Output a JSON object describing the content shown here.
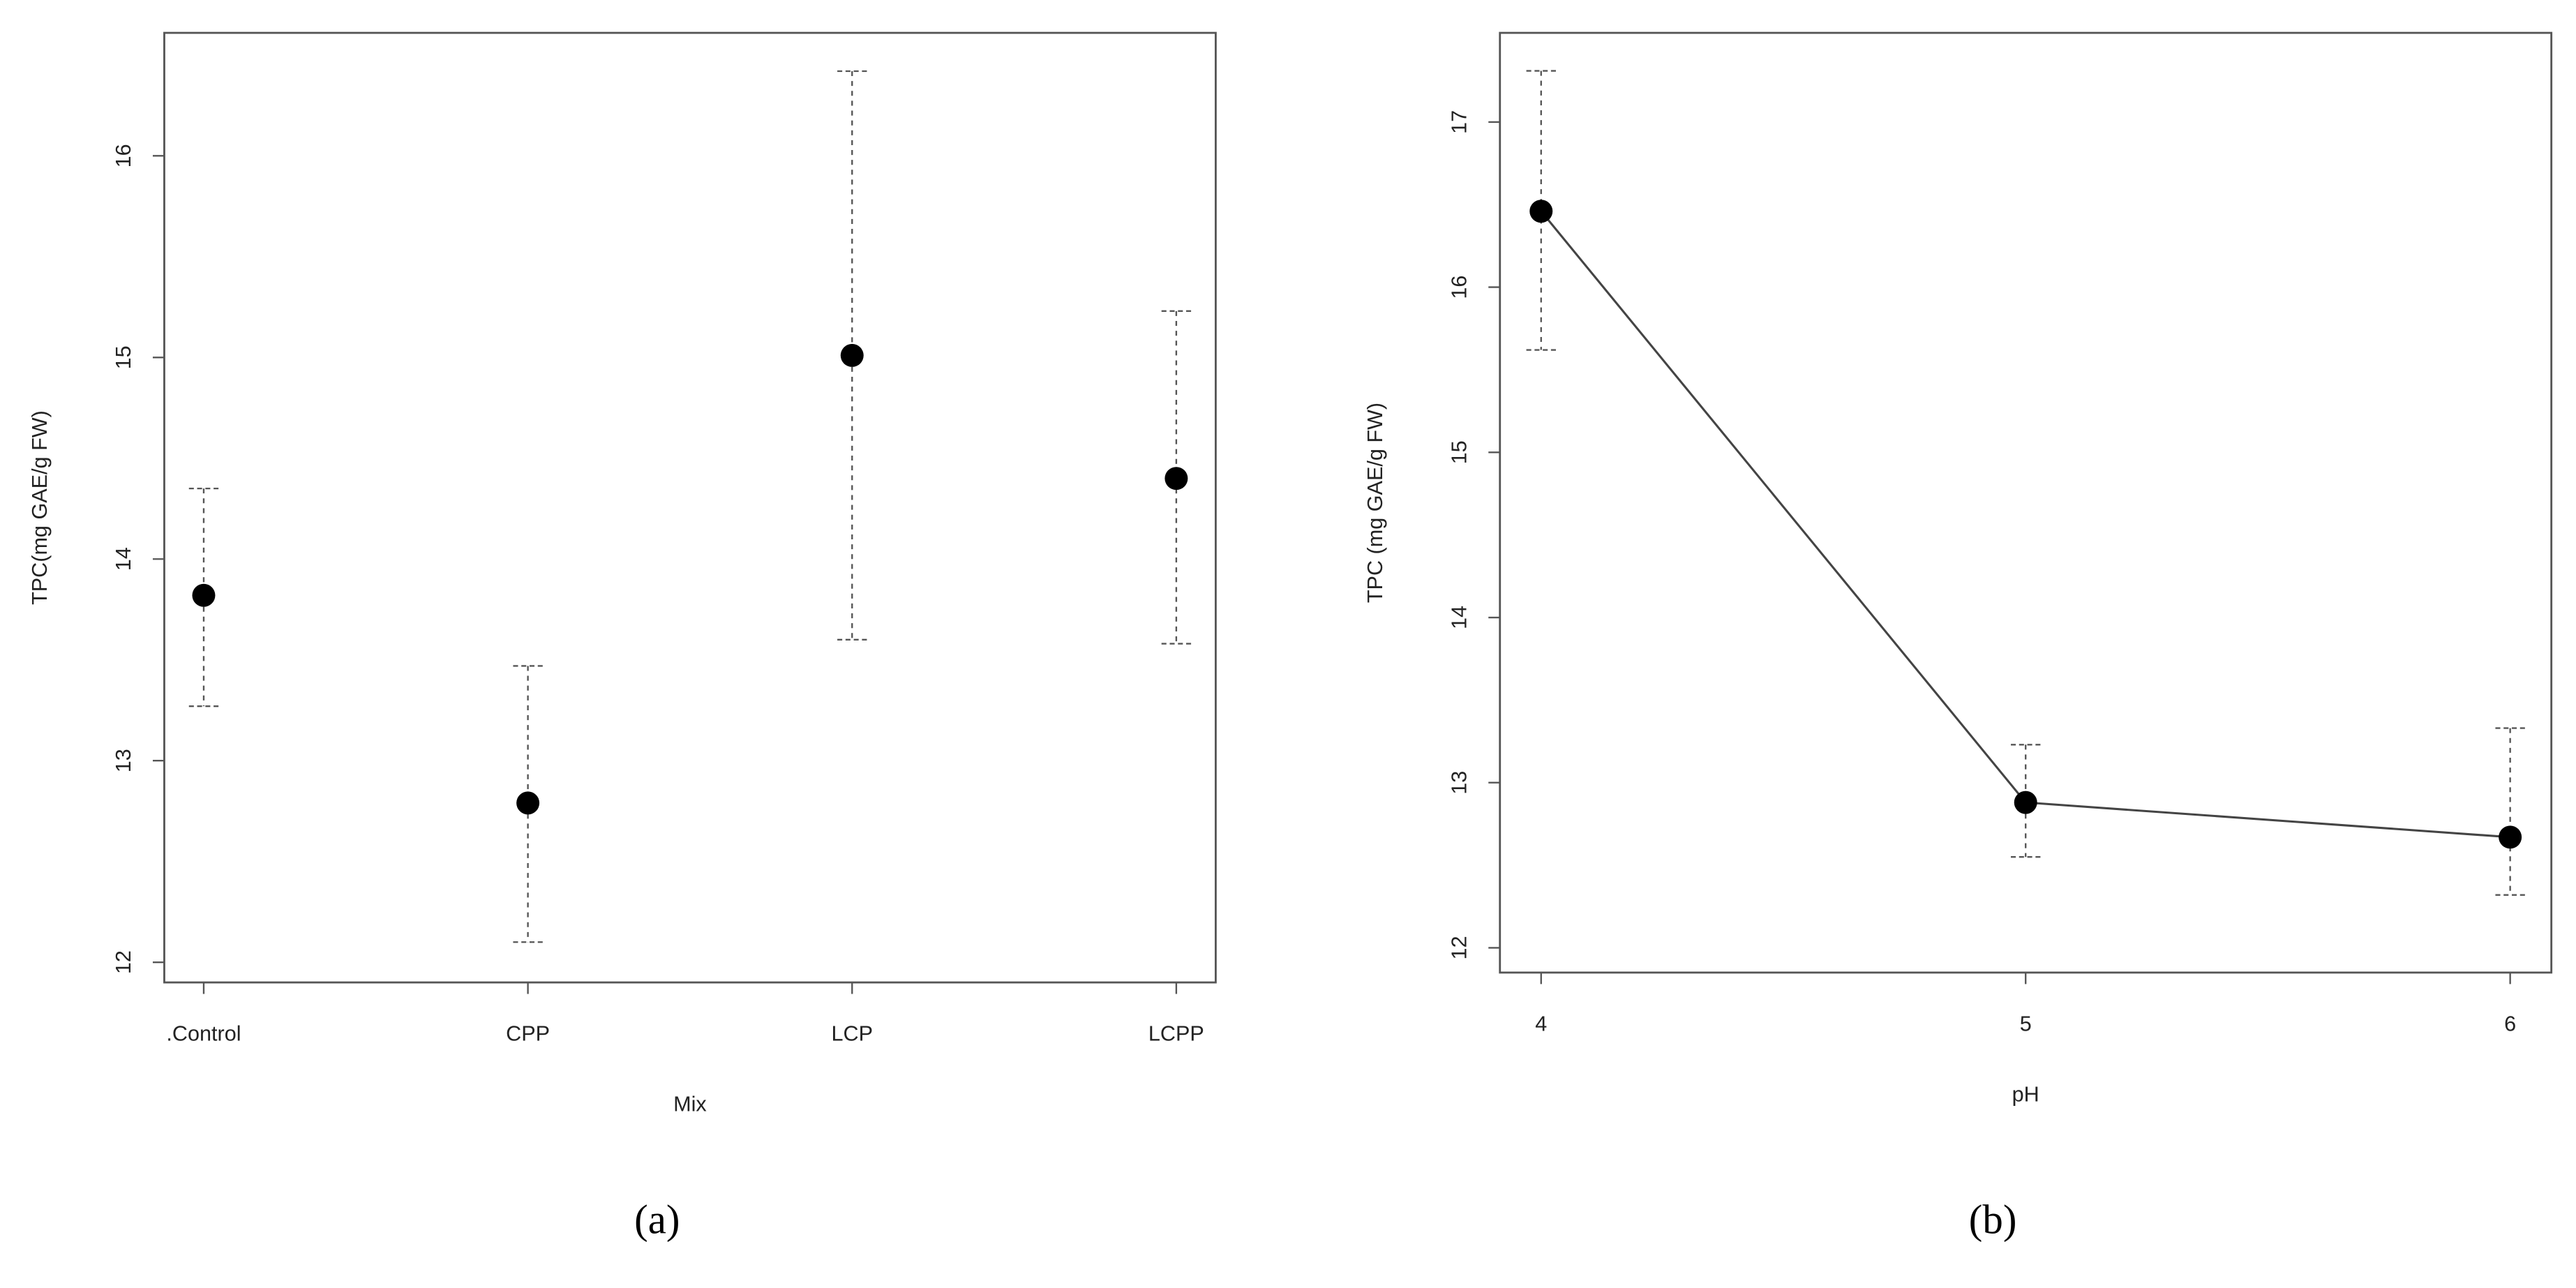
{
  "chart_data": [
    {
      "type": "errorbar",
      "panel_label": "(a)",
      "xlabel": "Mix",
      "ylabel": "TPC(mg GAE/g FW)",
      "categories": [
        ".Control",
        "CPP",
        "LCP",
        "LCPP"
      ],
      "values": [
        13.82,
        12.79,
        15.01,
        14.4
      ],
      "lower": [
        13.27,
        12.1,
        13.6,
        13.58
      ],
      "upper": [
        14.35,
        13.47,
        16.42,
        15.23
      ],
      "ylim": [
        11.9,
        16.61
      ],
      "yticks": [
        12,
        13,
        14,
        15,
        16
      ],
      "line": false,
      "color": "#000000"
    },
    {
      "type": "errorbar",
      "panel_label": "(b)",
      "xlabel": "pH",
      "ylabel": "TPC (mg GAE/g FW)",
      "x": [
        4,
        5,
        6
      ],
      "values": [
        16.46,
        12.88,
        12.67
      ],
      "lower": [
        15.62,
        12.55,
        12.32
      ],
      "upper": [
        17.31,
        13.23,
        13.33
      ],
      "xlim": [
        3.915,
        6.085
      ],
      "xticks": [
        4,
        5,
        6
      ],
      "ylim": [
        11.85,
        17.54
      ],
      "yticks": [
        12,
        13,
        14,
        15,
        16,
        17
      ],
      "line": true,
      "color": "#000000"
    }
  ]
}
